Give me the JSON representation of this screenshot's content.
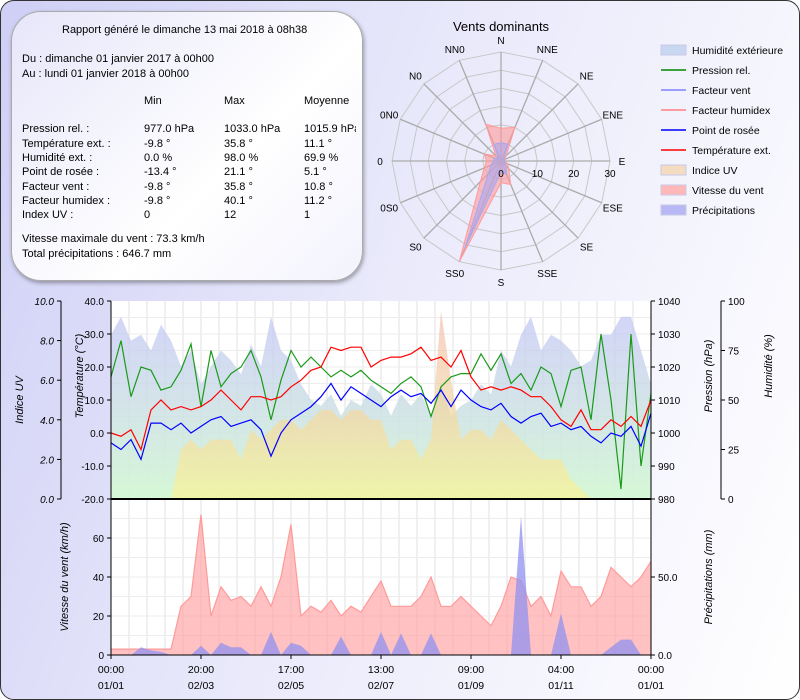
{
  "report": {
    "generated": "Rapport généré le dimanche 13 mai 2018 à 08h38",
    "from": "Du : dimanche 01 janvier 2017 à 00h00",
    "to": "Au : lundi 01 janvier 2018 à 00h00",
    "headers": [
      "",
      "Min",
      "Max",
      "Moyenne"
    ],
    "rows": [
      [
        "Pression rel. :",
        "977.0 hPa",
        "1033.0 hPa",
        "1015.9 hPa"
      ],
      [
        "Température ext. :",
        "-9.8 °",
        "35.8 °",
        "11.1 °"
      ],
      [
        "Humidité ext. :",
        "0.0 %",
        "98.0 %",
        "69.9 %"
      ],
      [
        "Point de rosée :",
        "-13.4 °",
        "21.1 °",
        "5.1 °"
      ],
      [
        "Facteur vent :",
        "-9.8 °",
        "35.8 °",
        "10.8 °"
      ],
      [
        "Facteur humidex :",
        "-9.8 °",
        "40.1 °",
        "11.2 °"
      ],
      [
        "Index UV :",
        "0",
        "12",
        "1"
      ]
    ],
    "max_wind": "Vitesse maximale du vent : 73.3 km/h",
    "total_precip": "Total précipitations : 646.7 mm"
  },
  "legend": [
    {
      "label": "Humidité extérieure",
      "kind": "area",
      "color": "#c8d8f0"
    },
    {
      "label": "Pression rel.",
      "kind": "line",
      "color": "#008800"
    },
    {
      "label": "Facteur vent",
      "kind": "line",
      "color": "#8080ff"
    },
    {
      "label": "Facteur humidex",
      "kind": "line",
      "color": "#ff8080"
    },
    {
      "label": "Point de rosée",
      "kind": "line",
      "color": "#0000ff"
    },
    {
      "label": "Température ext.",
      "kind": "line",
      "color": "#ff0000"
    },
    {
      "label": "Indice UV",
      "kind": "area",
      "color": "#f4dcc0"
    },
    {
      "label": "Vitesse du vent",
      "kind": "area",
      "color": "#ffb8b8"
    },
    {
      "label": "Précipitations",
      "kind": "area",
      "color": "#b8b8f4"
    }
  ],
  "chart_data": [
    {
      "type": "radar",
      "title": "Vents dominants",
      "directions": [
        "N",
        "NNE",
        "NE",
        "ENE",
        "E",
        "ESE",
        "SE",
        "SSE",
        "S",
        "SS0",
        "S0",
        "0S0",
        "0",
        "0N0",
        "N0",
        "NN0"
      ],
      "rlim": [
        0,
        30
      ],
      "r_ticks": [
        "0",
        "10",
        "20",
        "30"
      ],
      "series": [
        {
          "color": "#ff9a9a",
          "values": [
            9,
            10,
            2,
            1,
            1,
            2,
            3,
            7,
            6,
            30,
            8,
            5,
            4,
            5,
            2,
            11
          ]
        },
        {
          "color": "#a8a8f0",
          "values": [
            5,
            5,
            1,
            1,
            1,
            1,
            2,
            4,
            3,
            26,
            5,
            3,
            2,
            2,
            1,
            5
          ]
        }
      ]
    },
    {
      "type": "line",
      "x_ticks": [
        "00:00\n01/01",
        "20:00\n02/03",
        "17:00\n02/05",
        "13:00\n02/07",
        "09:00\n01/09",
        "04:00\n01/11",
        "00:00\n01/01"
      ],
      "axes": {
        "uv": {
          "label": "Indice UV",
          "range": [
            0,
            10
          ],
          "ticks": [
            "0.0",
            "2.0",
            "4.0",
            "6.0",
            "8.0",
            "10.0"
          ]
        },
        "temp": {
          "label": "Température (°C)",
          "range": [
            -20,
            40
          ],
          "ticks": [
            "-20.0",
            "-10.0",
            "0.0",
            "10.0",
            "20.0",
            "30.0",
            "40.0"
          ]
        },
        "pressure": {
          "label": "Pression (hPa)",
          "range": [
            980,
            1040
          ],
          "ticks": [
            "980",
            "990",
            "1000",
            "1010",
            "1020",
            "1030",
            "1040"
          ]
        },
        "humidity": {
          "label": "Humidité (%)",
          "range": [
            0,
            100
          ],
          "ticks": [
            "0",
            "25",
            "50",
            "75",
            "100"
          ]
        }
      },
      "series": {
        "humidity": [
          83,
          92,
          80,
          83,
          75,
          88,
          80,
          67,
          75,
          58,
          67,
          75,
          70,
          63,
          78,
          67,
          92,
          75,
          70,
          58,
          50,
          47,
          53,
          42,
          50,
          47,
          58,
          53,
          42,
          53,
          47,
          53,
          42,
          58,
          42,
          47,
          50,
          58,
          53,
          75,
          67,
          83,
          92,
          75,
          83,
          80,
          75,
          67,
          70,
          83,
          83,
          92,
          92,
          75,
          58
        ],
        "uv": [
          0,
          0,
          0,
          0,
          0,
          0,
          0,
          2.5,
          3,
          2.5,
          3,
          3,
          3,
          2,
          3.5,
          3,
          3.5,
          4,
          4,
          3.5,
          4,
          4.5,
          4.5,
          4,
          4.5,
          4.5,
          4,
          4,
          2.5,
          3,
          3,
          2,
          3,
          9.5,
          6,
          3,
          3.5,
          3.5,
          3,
          4,
          3.5,
          3,
          2.5,
          2,
          2,
          2,
          1,
          0.5,
          0,
          0,
          0,
          0,
          0,
          0,
          0
        ],
        "pressure": [
          1017,
          1028,
          1011,
          1020,
          1019,
          1013,
          1014,
          1019,
          1027,
          1008,
          1025,
          1014,
          1018,
          1020,
          1025,
          1017,
          1004,
          1016,
          1025,
          1020,
          1023,
          1020,
          1017,
          1019,
          1017,
          1019,
          1016,
          1014,
          1012,
          1015,
          1017,
          1014,
          1005,
          1014,
          1017,
          1018,
          1018,
          1024,
          1019,
          1024,
          1015,
          1018,
          1013,
          1020,
          1018,
          1008,
          1019,
          1020,
          1004,
          1030,
          1010,
          983,
          1030,
          990,
          1012
        ],
        "dew_point": [
          -3,
          -5,
          -2,
          -8,
          3,
          3,
          1,
          3,
          0,
          2,
          4,
          5,
          2,
          3,
          4,
          1,
          -7,
          0,
          4,
          6,
          8,
          11,
          15,
          10,
          14,
          12,
          10,
          8,
          11,
          13,
          11,
          12,
          9,
          13,
          8,
          13,
          10,
          8,
          7,
          9,
          5,
          3,
          5,
          6,
          2,
          3,
          1,
          2,
          -1,
          -3,
          0,
          -1,
          2,
          -4,
          6
        ],
        "temperature": [
          0,
          -1,
          1,
          -5,
          7,
          10,
          7,
          8,
          7,
          8,
          10,
          13,
          10,
          7,
          11,
          11,
          10,
          11,
          14,
          16,
          19,
          20,
          26,
          25,
          26,
          26,
          20,
          22,
          23,
          23,
          24,
          26,
          22,
          23,
          20,
          25,
          17,
          13,
          14,
          13,
          14,
          13,
          11,
          11,
          8,
          4,
          2,
          7,
          1,
          1,
          4,
          2,
          5,
          2,
          10
        ]
      }
    },
    {
      "type": "area",
      "x_ticks": [
        "00:00\n01/01",
        "20:00\n02/03",
        "17:00\n02/05",
        "13:00\n02/07",
        "09:00\n01/09",
        "04:00\n01/11",
        "00:00\n01/01"
      ],
      "axes": {
        "wind": {
          "label": "Vitesse du vent (km/h)",
          "range": [
            0,
            80
          ],
          "ticks": [
            "0",
            "20",
            "40",
            "60"
          ]
        },
        "precip": {
          "label": "Précipitations (mm)",
          "range": [
            0,
            100
          ],
          "ticks": [
            "0.0",
            "50.0"
          ]
        }
      },
      "series": {
        "wind_speed": [
          3,
          3,
          3,
          3,
          3,
          3,
          3,
          25,
          30,
          72,
          20,
          35,
          28,
          30,
          25,
          35,
          25,
          40,
          67,
          20,
          25,
          22,
          28,
          20,
          25,
          22,
          30,
          38,
          25,
          25,
          25,
          30,
          40,
          25,
          25,
          30,
          25,
          20,
          15,
          25,
          40,
          38,
          25,
          30,
          20,
          43,
          35,
          35,
          25,
          30,
          45,
          40,
          35,
          40,
          48
        ],
        "precipitation": [
          0,
          0,
          0,
          5,
          3,
          2,
          0,
          0,
          0,
          6,
          0,
          8,
          5,
          5,
          0,
          0,
          15,
          0,
          8,
          6,
          0,
          0,
          0,
          12,
          0,
          0,
          0,
          15,
          0,
          14,
          0,
          0,
          14,
          0,
          0,
          0,
          0,
          0,
          0,
          0,
          0,
          90,
          0,
          0,
          0,
          27,
          0,
          0,
          0,
          0,
          5,
          10,
          10,
          0,
          0
        ]
      }
    }
  ]
}
